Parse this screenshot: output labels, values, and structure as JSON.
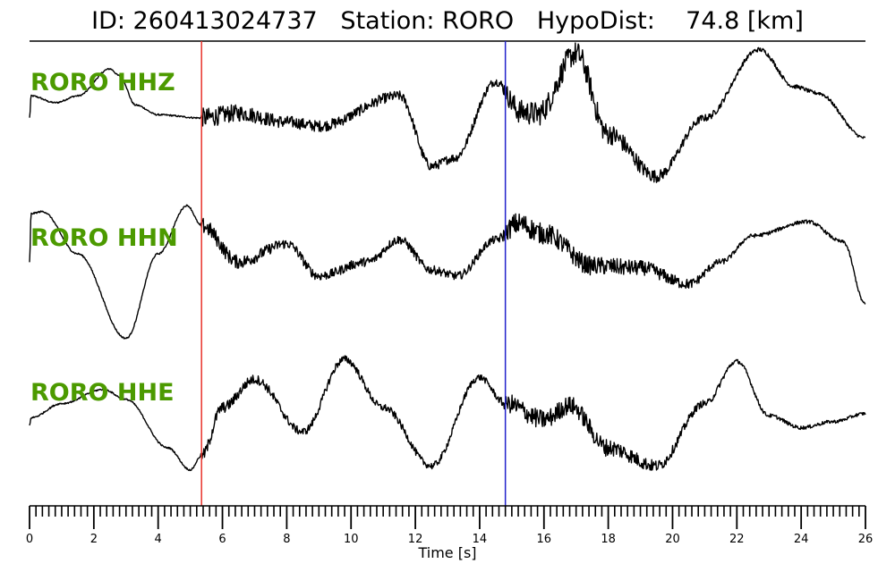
{
  "header": {
    "title": "ID: 260413024737   Station: RORO   HypoDist:    74.8 [km]"
  },
  "colors": {
    "trace": "#000000",
    "label": "#4c9a00",
    "p_pick": "#e8312a",
    "s_pick": "#2222cc",
    "axis": "#000000"
  },
  "chart_data": {
    "type": "line",
    "xlabel": "Time [s]",
    "xlim": [
      0,
      26
    ],
    "x_ticks": [
      0,
      2,
      4,
      6,
      8,
      10,
      12,
      14,
      16,
      18,
      20,
      22,
      24,
      26
    ],
    "minor_tick_step": 0.2,
    "picks": [
      {
        "phase": "P",
        "time": 5.35,
        "color": "#e8312a"
      },
      {
        "phase": "S",
        "time": 14.8,
        "color": "#2222cc"
      }
    ],
    "series": [
      {
        "name": "RORO HHZ",
        "keypoints": [
          [
            0.0,
            0.0
          ],
          [
            0.05,
            0.55
          ],
          [
            0.8,
            0.38
          ],
          [
            1.5,
            0.55
          ],
          [
            2.5,
            1.22
          ],
          [
            2.8,
            1.05
          ],
          [
            3.3,
            0.32
          ],
          [
            4.0,
            0.08
          ],
          [
            5.35,
            0.0
          ],
          [
            6.5,
            0.12
          ],
          [
            8.0,
            -0.1
          ],
          [
            9.0,
            -0.2
          ],
          [
            11.5,
            0.55
          ],
          [
            12.5,
            -1.2
          ],
          [
            13.2,
            -1.0
          ],
          [
            14.5,
            0.9
          ],
          [
            15.3,
            0.15
          ],
          [
            15.8,
            0.1
          ],
          [
            17.0,
            1.6
          ],
          [
            18.0,
            -0.4
          ],
          [
            19.5,
            -1.45
          ],
          [
            21.0,
            0.0
          ],
          [
            22.7,
            1.7
          ],
          [
            23.8,
            0.78
          ],
          [
            24.5,
            0.62
          ],
          [
            26.0,
            -0.5
          ]
        ],
        "noise_amp": [
          [
            0,
            0.02
          ],
          [
            5.3,
            0.02
          ],
          [
            5.4,
            0.25
          ],
          [
            8,
            0.15
          ],
          [
            14.6,
            0.1
          ],
          [
            15,
            0.3
          ],
          [
            17.5,
            0.3
          ],
          [
            20,
            0.12
          ],
          [
            22,
            0.06
          ],
          [
            26,
            0.04
          ]
        ]
      },
      {
        "name": "RORO HHN",
        "keypoints": [
          [
            0.0,
            -0.2
          ],
          [
            0.05,
            1.0
          ],
          [
            0.4,
            1.05
          ],
          [
            1.5,
            0.0
          ],
          [
            3.0,
            -2.1
          ],
          [
            4.0,
            0.0
          ],
          [
            4.9,
            1.2
          ],
          [
            5.35,
            0.7
          ],
          [
            6.5,
            -0.2
          ],
          [
            8.0,
            0.25
          ],
          [
            9.0,
            -0.55
          ],
          [
            10.5,
            -0.2
          ],
          [
            11.5,
            0.35
          ],
          [
            12.5,
            -0.4
          ],
          [
            13.3,
            -0.55
          ],
          [
            14.5,
            0.35
          ],
          [
            15.2,
            0.75
          ],
          [
            16.0,
            0.5
          ],
          [
            17.5,
            -0.3
          ],
          [
            19.0,
            -0.35
          ],
          [
            20.5,
            -0.75
          ],
          [
            21.5,
            -0.2
          ],
          [
            22.5,
            0.45
          ],
          [
            24.2,
            0.8
          ],
          [
            25.3,
            0.3
          ],
          [
            26.0,
            -1.25
          ]
        ],
        "noise_amp": [
          [
            0,
            0.02
          ],
          [
            5.3,
            0.02
          ],
          [
            5.4,
            0.2
          ],
          [
            8,
            0.12
          ],
          [
            14.6,
            0.1
          ],
          [
            15,
            0.28
          ],
          [
            18,
            0.22
          ],
          [
            20,
            0.15
          ],
          [
            22,
            0.05
          ],
          [
            26,
            0.04
          ]
        ]
      },
      {
        "name": "RORO HHE",
        "keypoints": [
          [
            0.0,
            -0.45
          ],
          [
            0.05,
            -0.25
          ],
          [
            1.0,
            0.1
          ],
          [
            2.3,
            0.45
          ],
          [
            3.0,
            0.2
          ],
          [
            4.3,
            -1.0
          ],
          [
            5.0,
            -1.55
          ],
          [
            5.35,
            -1.2
          ],
          [
            6.0,
            0.0
          ],
          [
            7.0,
            0.7
          ],
          [
            8.5,
            -0.6
          ],
          [
            9.8,
            1.2
          ],
          [
            11.0,
            0.0
          ],
          [
            12.5,
            -1.45
          ],
          [
            14.0,
            0.75
          ],
          [
            14.8,
            0.1
          ],
          [
            16.0,
            -0.3
          ],
          [
            16.8,
            0.05
          ],
          [
            18.0,
            -1.0
          ],
          [
            19.5,
            -1.45
          ],
          [
            21.0,
            0.1
          ],
          [
            22.0,
            1.15
          ],
          [
            23.0,
            -0.2
          ],
          [
            24.0,
            -0.5
          ],
          [
            25.0,
            -0.35
          ],
          [
            26.0,
            -0.15
          ]
        ],
        "noise_amp": [
          [
            0,
            0.02
          ],
          [
            5.3,
            0.02
          ],
          [
            5.4,
            0.15
          ],
          [
            8,
            0.1
          ],
          [
            14.6,
            0.08
          ],
          [
            15,
            0.25
          ],
          [
            18,
            0.22
          ],
          [
            20,
            0.12
          ],
          [
            22,
            0.05
          ],
          [
            26,
            0.04
          ]
        ]
      }
    ]
  }
}
